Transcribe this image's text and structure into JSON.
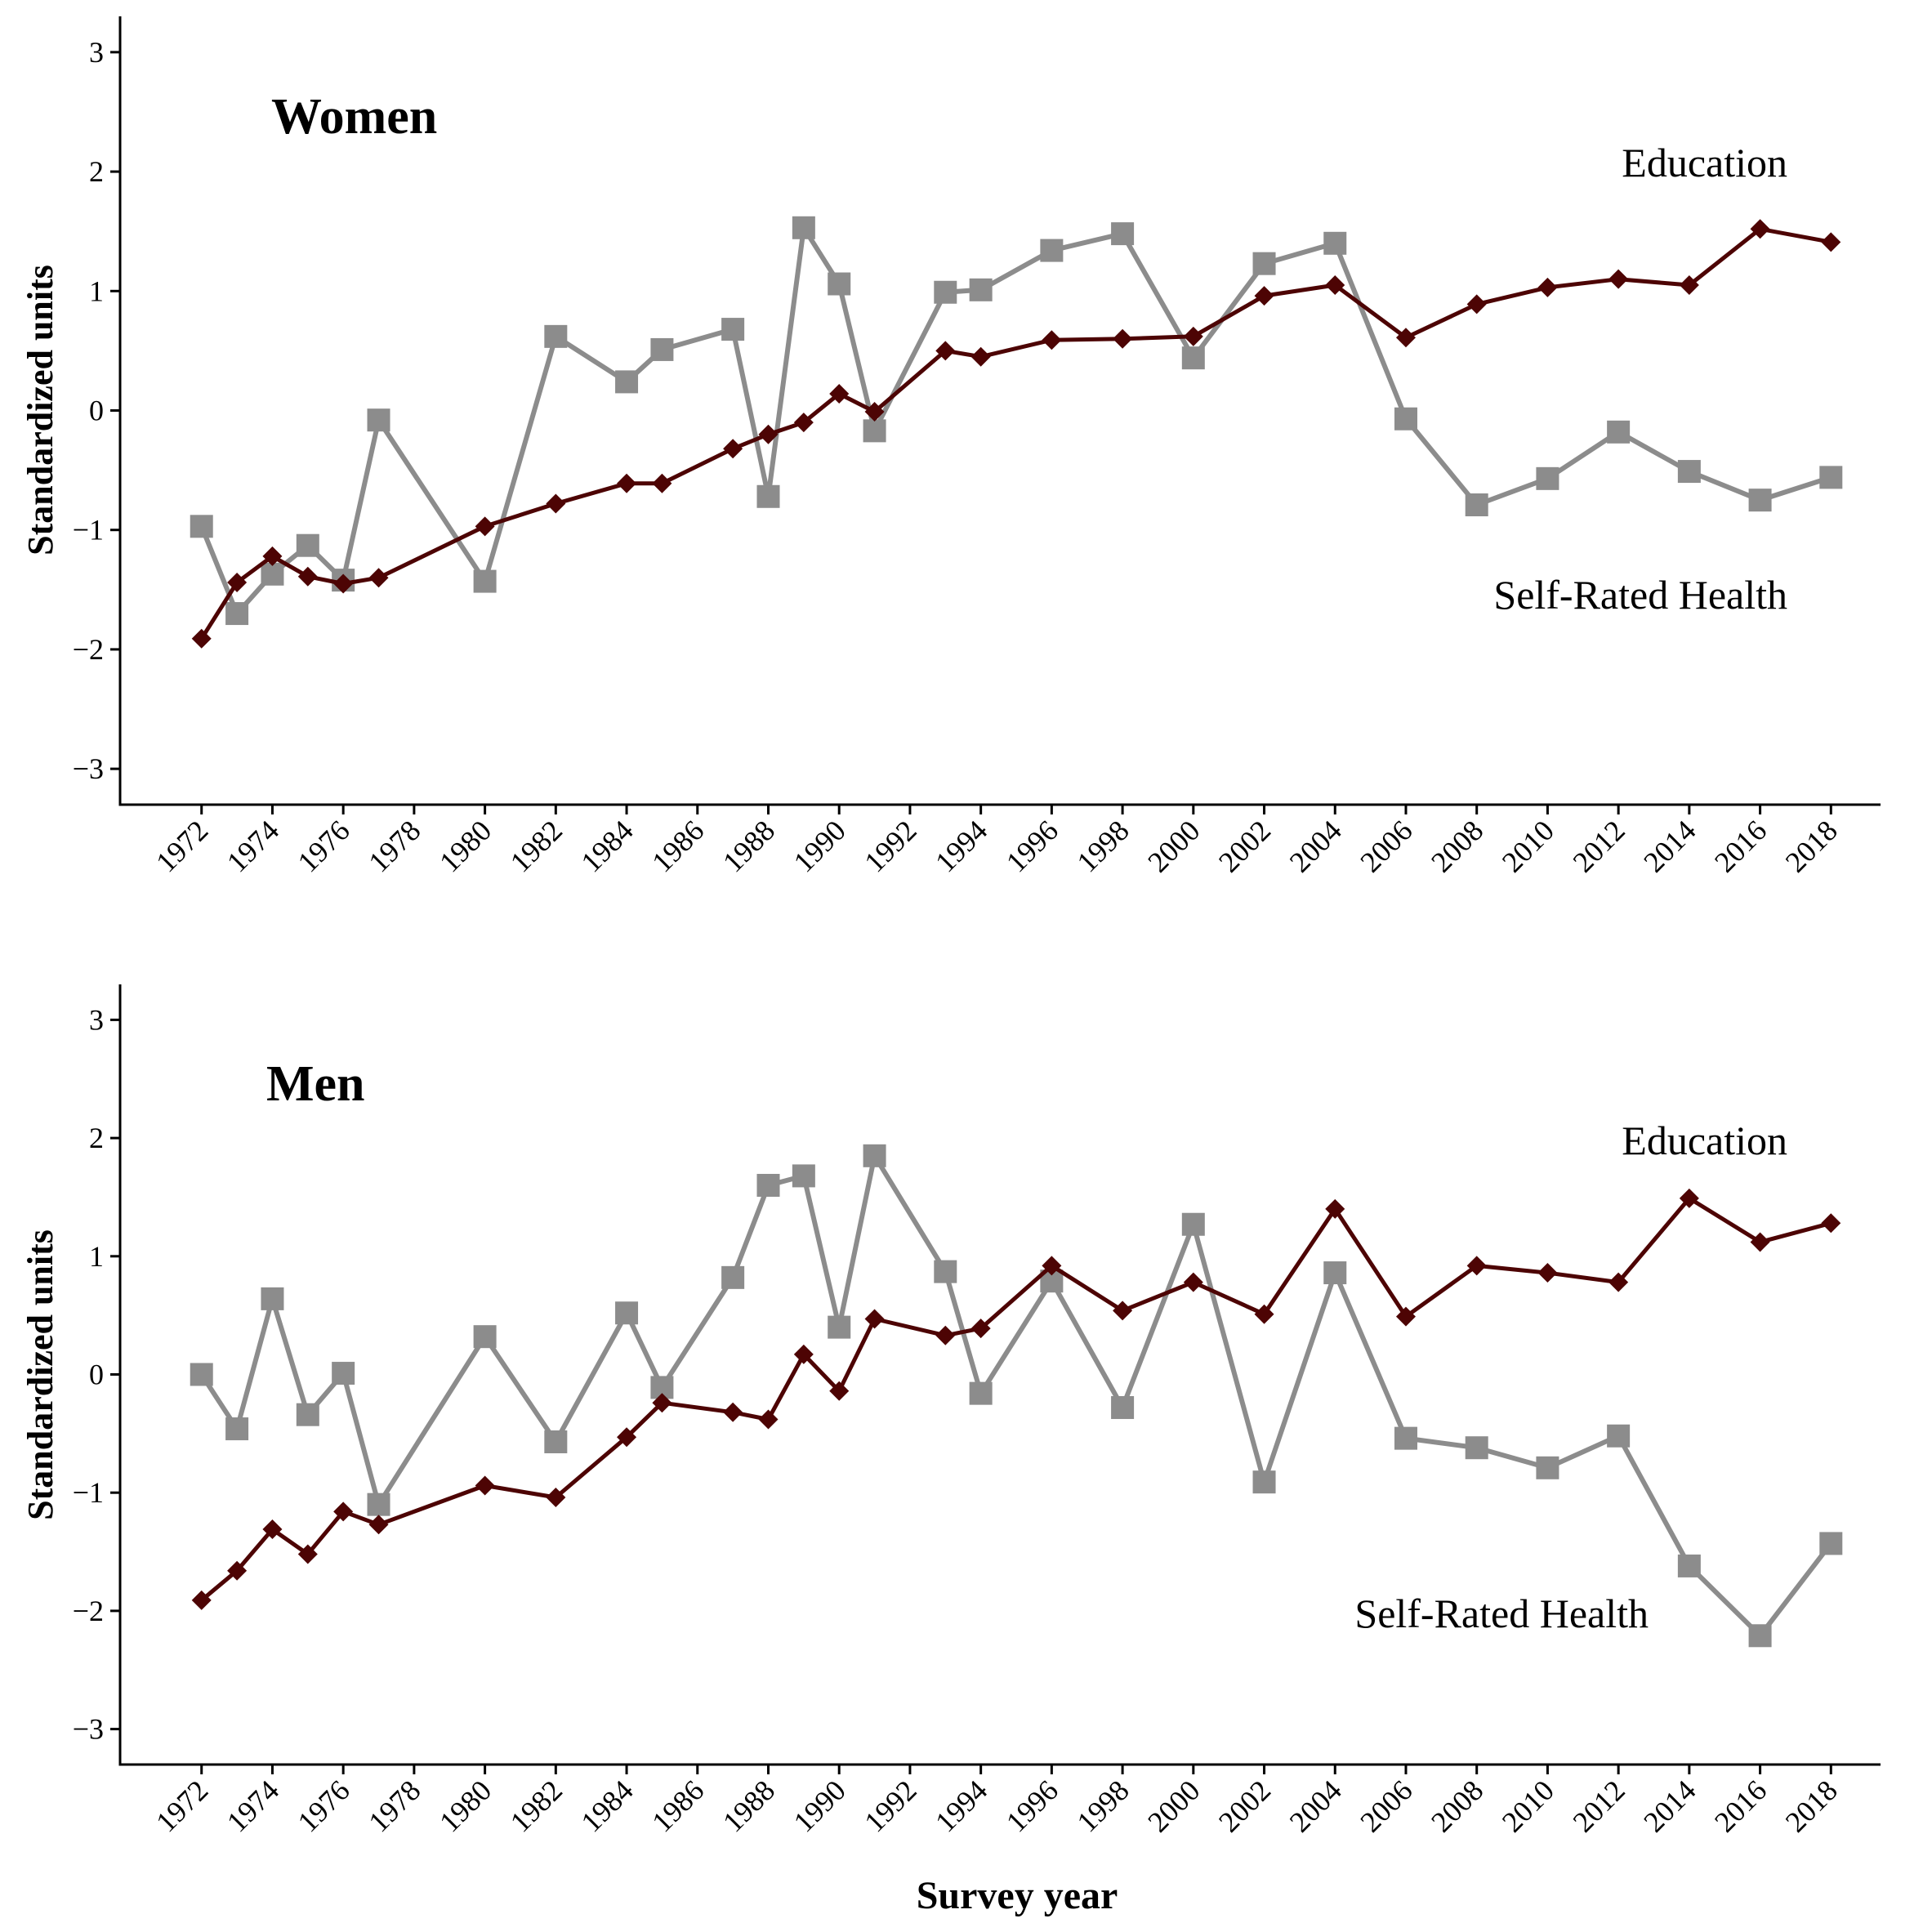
{
  "colors": {
    "education": "#4d0404",
    "self_rated_health": "#8c8c8c",
    "axis": "#000000"
  },
  "x_axis_title": "Survey year",
  "chart_data": [
    {
      "type": "line",
      "title": "Women",
      "ylabel": "Standardized units",
      "xlabel": "",
      "x_ticks": [
        1972,
        1974,
        1976,
        1978,
        1980,
        1982,
        1984,
        1986,
        1988,
        1990,
        1992,
        1994,
        1996,
        1998,
        2000,
        2002,
        2004,
        2006,
        2008,
        2010,
        2012,
        2014,
        2016,
        2018
      ],
      "y_ticks": [
        -3,
        -2,
        -1,
        0,
        1,
        2,
        3
      ],
      "xlim": [
        1969.7,
        2019.4
      ],
      "ylim": [
        -3.3,
        3.3
      ],
      "grid": false,
      "annotations": {
        "top": "Education",
        "bottom": "Self-Rated Health"
      },
      "series": [
        {
          "key": "self_rated_health",
          "marker": "square",
          "x": [
            1972,
            1973,
            1974,
            1975,
            1976,
            1977,
            1980,
            1982,
            1984,
            1985,
            1987,
            1988,
            1989,
            1990,
            1991,
            1993,
            1994,
            1996,
            1998,
            2000,
            2002,
            2004,
            2006,
            2008,
            2010,
            2012,
            2014,
            2016,
            2018
          ],
          "y": [
            -0.97,
            -1.7,
            -1.37,
            -1.13,
            -1.42,
            -0.08,
            -1.43,
            0.62,
            0.24,
            0.51,
            0.68,
            -0.72,
            1.53,
            1.06,
            -0.17,
            0.99,
            1.01,
            1.34,
            1.48,
            0.44,
            1.23,
            1.4,
            -0.07,
            -0.79,
            -0.57,
            -0.18,
            -0.51,
            -0.75,
            -0.56
          ]
        },
        {
          "key": "education",
          "marker": "diamond",
          "x": [
            1972,
            1973,
            1974,
            1975,
            1976,
            1977,
            1980,
            1982,
            1984,
            1985,
            1987,
            1988,
            1989,
            1990,
            1991,
            1993,
            1994,
            1996,
            1998,
            2000,
            2002,
            2004,
            2006,
            2008,
            2010,
            2012,
            2014,
            2016,
            2018
          ],
          "y": [
            -1.91,
            -1.44,
            -1.22,
            -1.39,
            -1.45,
            -1.4,
            -0.97,
            -0.78,
            -0.61,
            -0.61,
            -0.32,
            -0.2,
            -0.1,
            0.14,
            -0.01,
            0.5,
            0.45,
            0.59,
            0.6,
            0.62,
            0.96,
            1.05,
            0.61,
            0.89,
            1.03,
            1.1,
            1.05,
            1.52,
            1.41
          ]
        }
      ]
    },
    {
      "type": "line",
      "title": "Men",
      "ylabel": "Standardized units",
      "xlabel": "Survey year",
      "x_ticks": [
        1972,
        1974,
        1976,
        1978,
        1980,
        1982,
        1984,
        1986,
        1988,
        1990,
        1992,
        1994,
        1996,
        1998,
        2000,
        2002,
        2004,
        2006,
        2008,
        2010,
        2012,
        2014,
        2016,
        2018
      ],
      "y_ticks": [
        -3,
        -2,
        -1,
        0,
        1,
        2,
        3
      ],
      "xlim": [
        1969.7,
        2019.4
      ],
      "ylim": [
        -3.3,
        3.3
      ],
      "grid": false,
      "annotations": {
        "top": "Education",
        "bottom": "Self-Rated Health"
      },
      "series": [
        {
          "key": "self_rated_health",
          "marker": "square",
          "x": [
            1972,
            1973,
            1974,
            1975,
            1976,
            1977,
            1980,
            1982,
            1984,
            1985,
            1987,
            1988,
            1989,
            1990,
            1991,
            1993,
            1994,
            1996,
            1998,
            2000,
            2002,
            2004,
            2006,
            2008,
            2010,
            2012,
            2014,
            2016,
            2018
          ],
          "y": [
            0.0,
            -0.46,
            0.64,
            -0.34,
            0.01,
            -1.1,
            0.32,
            -0.57,
            0.52,
            -0.11,
            0.82,
            1.6,
            1.68,
            0.4,
            1.85,
            0.87,
            -0.16,
            0.79,
            -0.28,
            1.27,
            -0.91,
            0.86,
            -0.54,
            -0.62,
            -0.79,
            -0.52,
            -1.62,
            -2.21,
            -1.43
          ]
        },
        {
          "key": "education",
          "marker": "diamond",
          "x": [
            1972,
            1973,
            1974,
            1975,
            1976,
            1977,
            1980,
            1982,
            1984,
            1985,
            1987,
            1988,
            1989,
            1990,
            1991,
            1993,
            1994,
            1996,
            1998,
            2000,
            2002,
            2004,
            2006,
            2008,
            2010,
            2012,
            2014,
            2016,
            2018
          ],
          "y": [
            -1.91,
            -1.66,
            -1.31,
            -1.52,
            -1.16,
            -1.27,
            -0.94,
            -1.04,
            -0.53,
            -0.24,
            -0.32,
            -0.38,
            0.17,
            -0.14,
            0.47,
            0.33,
            0.39,
            0.92,
            0.54,
            0.78,
            0.51,
            1.4,
            0.49,
            0.92,
            0.86,
            0.78,
            1.49,
            1.12,
            1.28
          ]
        }
      ]
    }
  ]
}
